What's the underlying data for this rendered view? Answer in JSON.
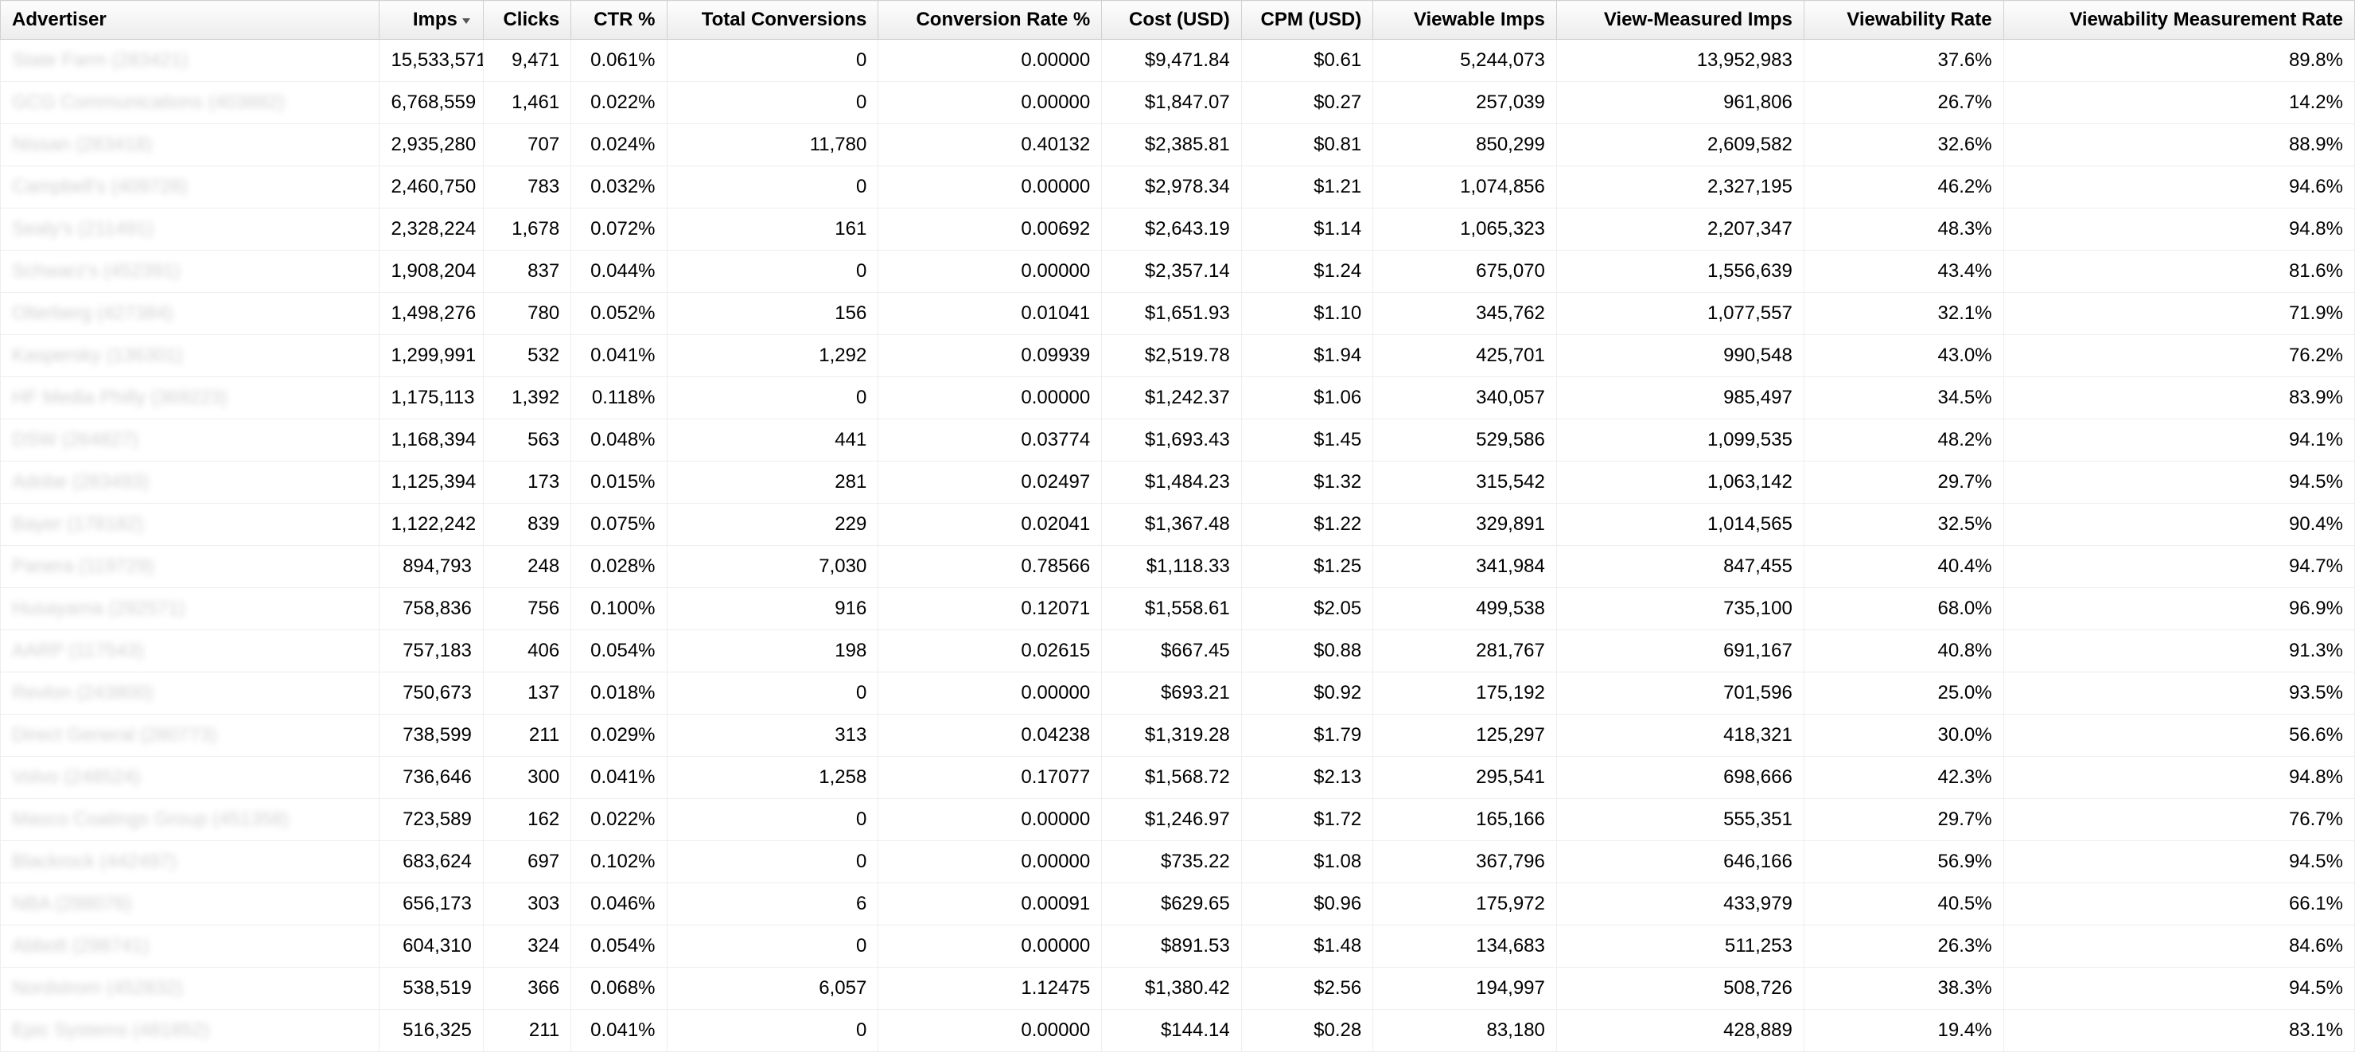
{
  "table": {
    "sorted_column_index": 1,
    "sort_direction": "desc",
    "columns": [
      "Advertiser",
      "Imps",
      "Clicks",
      "CTR %",
      "Total Conversions",
      "Conversion Rate %",
      "Cost (USD)",
      "CPM (USD)",
      "Viewable Imps",
      "View-Measured Imps",
      "Viewability Rate",
      "Viewability Measurement Rate"
    ],
    "rows": [
      [
        "State Farm (283421)",
        "15,533,571",
        "9,471",
        "0.061%",
        "0",
        "0.00000",
        "$9,471.84",
        "$0.61",
        "5,244,073",
        "13,952,983",
        "37.6%",
        "89.8%"
      ],
      [
        "GCG Communications (403882)",
        "6,768,559",
        "1,461",
        "0.022%",
        "0",
        "0.00000",
        "$1,847.07",
        "$0.27",
        "257,039",
        "961,806",
        "26.7%",
        "14.2%"
      ],
      [
        "Nissan (283418)",
        "2,935,280",
        "707",
        "0.024%",
        "11,780",
        "0.40132",
        "$2,385.81",
        "$0.81",
        "850,299",
        "2,609,582",
        "32.6%",
        "88.9%"
      ],
      [
        "Campbell's (409728)",
        "2,460,750",
        "783",
        "0.032%",
        "0",
        "0.00000",
        "$2,978.34",
        "$1.21",
        "1,074,856",
        "2,327,195",
        "46.2%",
        "94.6%"
      ],
      [
        "Sealy's (211491)",
        "2,328,224",
        "1,678",
        "0.072%",
        "161",
        "0.00692",
        "$2,643.19",
        "$1.14",
        "1,065,323",
        "2,207,347",
        "48.3%",
        "94.8%"
      ],
      [
        "Schwarz's (452391)",
        "1,908,204",
        "837",
        "0.044%",
        "0",
        "0.00000",
        "$2,357.14",
        "$1.24",
        "675,070",
        "1,556,639",
        "43.4%",
        "81.6%"
      ],
      [
        "Olterberg (427384)",
        "1,498,276",
        "780",
        "0.052%",
        "156",
        "0.01041",
        "$1,651.93",
        "$1.10",
        "345,762",
        "1,077,557",
        "32.1%",
        "71.9%"
      ],
      [
        "Kaspersky (136301)",
        "1,299,991",
        "532",
        "0.041%",
        "1,292",
        "0.09939",
        "$2,519.78",
        "$1.94",
        "425,701",
        "990,548",
        "43.0%",
        "76.2%"
      ],
      [
        "HF Media Philly (369223)",
        "1,175,113",
        "1,392",
        "0.118%",
        "0",
        "0.00000",
        "$1,242.37",
        "$1.06",
        "340,057",
        "985,497",
        "34.5%",
        "83.9%"
      ],
      [
        "DSW (264827)",
        "1,168,394",
        "563",
        "0.048%",
        "441",
        "0.03774",
        "$1,693.43",
        "$1.45",
        "529,586",
        "1,099,535",
        "48.2%",
        "94.1%"
      ],
      [
        "Adobe (283493)",
        "1,125,394",
        "173",
        "0.015%",
        "281",
        "0.02497",
        "$1,484.23",
        "$1.32",
        "315,542",
        "1,063,142",
        "29.7%",
        "94.5%"
      ],
      [
        "Bayer (178182)",
        "1,122,242",
        "839",
        "0.075%",
        "229",
        "0.02041",
        "$1,367.48",
        "$1.22",
        "329,891",
        "1,014,565",
        "32.5%",
        "90.4%"
      ],
      [
        "Panera (119729)",
        "894,793",
        "248",
        "0.028%",
        "7,030",
        "0.78566",
        "$1,118.33",
        "$1.25",
        "341,984",
        "847,455",
        "40.4%",
        "94.7%"
      ],
      [
        "Husayama (292571)",
        "758,836",
        "756",
        "0.100%",
        "916",
        "0.12071",
        "$1,558.61",
        "$2.05",
        "499,538",
        "735,100",
        "68.0%",
        "96.9%"
      ],
      [
        "AARP (117543)",
        "757,183",
        "406",
        "0.054%",
        "198",
        "0.02615",
        "$667.45",
        "$0.88",
        "281,767",
        "691,167",
        "40.8%",
        "91.3%"
      ],
      [
        "Revlon (243800)",
        "750,673",
        "137",
        "0.018%",
        "0",
        "0.00000",
        "$693.21",
        "$0.92",
        "175,192",
        "701,596",
        "25.0%",
        "93.5%"
      ],
      [
        "Direct General (280773)",
        "738,599",
        "211",
        "0.029%",
        "313",
        "0.04238",
        "$1,319.28",
        "$1.79",
        "125,297",
        "418,321",
        "30.0%",
        "56.6%"
      ],
      [
        "Volvo (248524)",
        "736,646",
        "300",
        "0.041%",
        "1,258",
        "0.17077",
        "$1,568.72",
        "$2.13",
        "295,541",
        "698,666",
        "42.3%",
        "94.8%"
      ],
      [
        "Masco Coatings Group (451358)",
        "723,589",
        "162",
        "0.022%",
        "0",
        "0.00000",
        "$1,246.97",
        "$1.72",
        "165,166",
        "555,351",
        "29.7%",
        "76.7%"
      ],
      [
        "Blackrock (442497)",
        "683,624",
        "697",
        "0.102%",
        "0",
        "0.00000",
        "$735.22",
        "$1.08",
        "367,796",
        "646,166",
        "56.9%",
        "94.5%"
      ],
      [
        "NBA (288076)",
        "656,173",
        "303",
        "0.046%",
        "6",
        "0.00091",
        "$629.65",
        "$0.96",
        "175,972",
        "433,979",
        "40.5%",
        "66.1%"
      ],
      [
        "Abbott (298741)",
        "604,310",
        "324",
        "0.054%",
        "0",
        "0.00000",
        "$891.53",
        "$1.48",
        "134,683",
        "511,253",
        "26.3%",
        "84.6%"
      ],
      [
        "Nordstrom (452832)",
        "538,519",
        "366",
        "0.068%",
        "6,057",
        "1.12475",
        "$1,380.42",
        "$2.56",
        "194,997",
        "508,726",
        "38.3%",
        "94.5%"
      ],
      [
        "Epic Systems (481852)",
        "516,325",
        "211",
        "0.041%",
        "0",
        "0.00000",
        "$144.14",
        "$0.28",
        "83,180",
        "428,889",
        "19.4%",
        "83.1%"
      ]
    ]
  }
}
